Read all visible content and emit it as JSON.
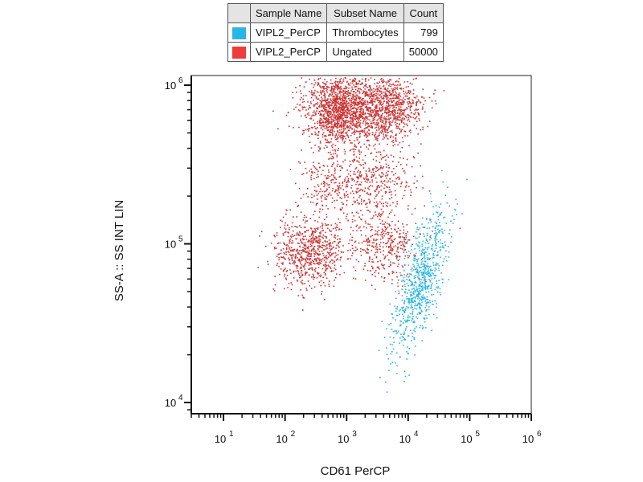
{
  "legend": {
    "headers": [
      "Sample Name",
      "Subset Name",
      "Count"
    ],
    "rows": [
      {
        "sample": "VIPL2_PerCP",
        "subset": "Thrombocytes",
        "count": "799",
        "color": "#29b6e4"
      },
      {
        "sample": "VIPL2_PerCP",
        "subset": "Ungated",
        "count": "50000",
        "color": "#ee3b3b"
      }
    ]
  },
  "chart_data": {
    "type": "scatter",
    "xlabel": "CD61 PerCP",
    "ylabel": "SS-A :: SS INT LIN",
    "xscale": "log",
    "yscale": "log",
    "xlim": [
      3,
      1000000
    ],
    "ylim": [
      8500,
      1150000
    ],
    "xticks": [
      {
        "base": "10",
        "exp": "1",
        "value": 10
      },
      {
        "base": "10",
        "exp": "2",
        "value": 100
      },
      {
        "base": "10",
        "exp": "3",
        "value": 1000
      },
      {
        "base": "10",
        "exp": "4",
        "value": 10000
      },
      {
        "base": "10",
        "exp": "5",
        "value": 100000
      },
      {
        "base": "10",
        "exp": "6",
        "value": 1000000
      }
    ],
    "yticks": [
      {
        "base": "10",
        "exp": "4",
        "value": 10000
      },
      {
        "base": "10",
        "exp": "5",
        "value": 100000
      },
      {
        "base": "10",
        "exp": "6",
        "value": 1000000
      }
    ],
    "series": [
      {
        "name": "Ungated",
        "color": "#cc3333",
        "count": 50000,
        "clusters": [
          {
            "x": 750,
            "y": 720000,
            "n": 1400
          },
          {
            "x": 4200,
            "y": 720000,
            "n": 900
          },
          {
            "x": 250,
            "y": 90000,
            "n": 700
          },
          {
            "x": 4000,
            "y": 100000,
            "n": 380
          },
          {
            "x": 650,
            "y": 250000,
            "n": 300
          },
          {
            "x": 3500,
            "y": 250000,
            "n": 280
          }
        ]
      },
      {
        "name": "Thrombocytes",
        "color": "#29b6e4",
        "count": 799,
        "clusters": [
          {
            "x": 15000,
            "y": 55000,
            "n": 520
          },
          {
            "x": 25000,
            "y": 110000,
            "n": 150
          },
          {
            "x": 8000,
            "y": 28000,
            "n": 90
          }
        ]
      }
    ]
  }
}
